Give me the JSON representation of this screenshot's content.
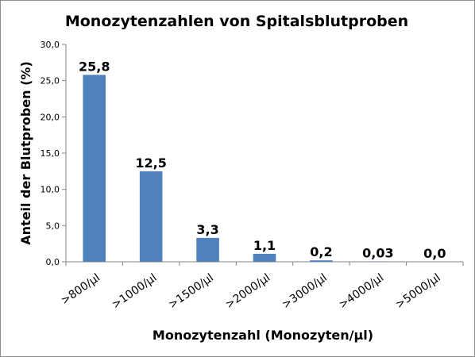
{
  "chart_data": {
    "type": "bar",
    "title": "Monozytenzahlen von Spitalsblutproben",
    "xlabel": "Monozytenzahl  (Monozyten/µl)",
    "ylabel": "Anteil der Blutproben  (%)",
    "ylim": [
      0,
      30
    ],
    "yticks": [
      "0,0",
      "5,0",
      "10,0",
      "15,0",
      "20,0",
      "25,0",
      "30,0"
    ],
    "categories": [
      ">800/µl",
      ">1000/µl",
      ">1500/µl",
      ">2000/µl",
      ">3000/µl",
      ">4000/µl",
      ">5000/µl"
    ],
    "values": [
      25.8,
      12.5,
      3.3,
      1.1,
      0.2,
      0.03,
      0.0
    ],
    "data_labels": [
      "25,8",
      "12,5",
      "3,3",
      "1,1",
      "0,2",
      "0,03",
      "0,0"
    ],
    "bar_color": "#4f81bd",
    "grid": false,
    "legend": "none"
  }
}
